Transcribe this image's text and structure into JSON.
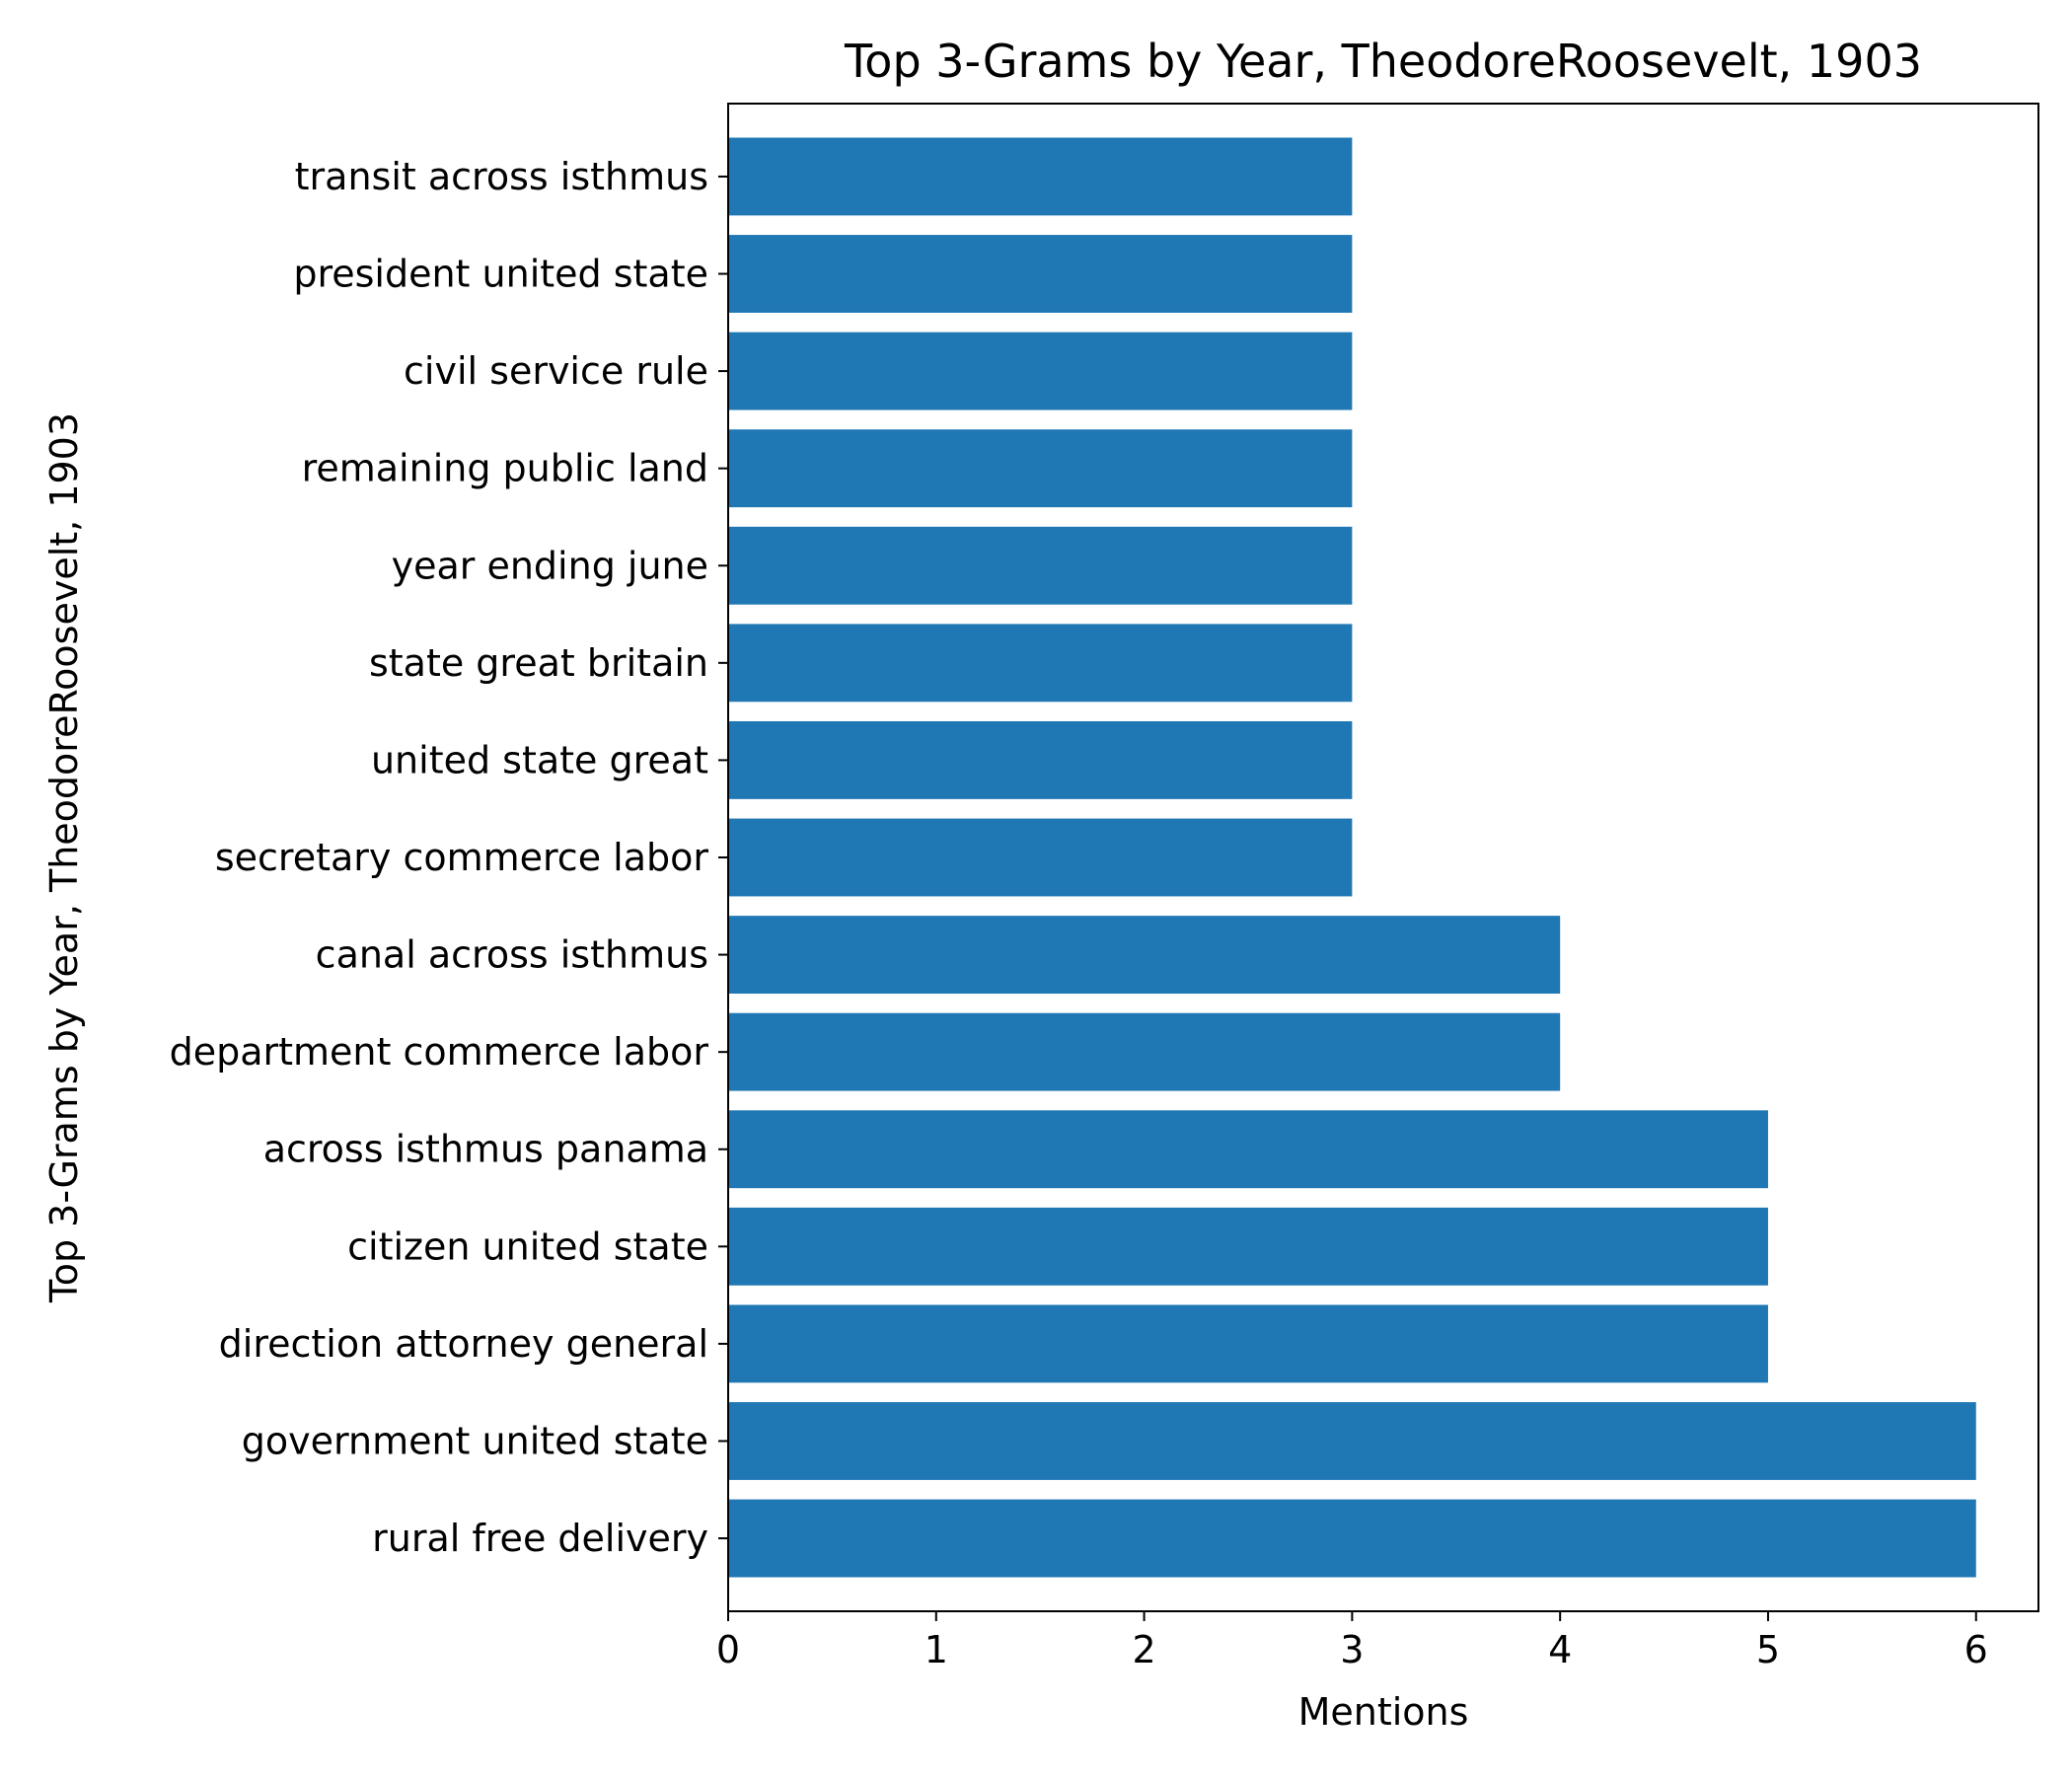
{
  "chart_data": {
    "type": "bar",
    "orientation": "horizontal",
    "title": "Top 3-Grams by Year, TheodoreRoosevelt, 1903",
    "xlabel": "Mentions",
    "ylabel": "Top 3-Grams by Year, TheodoreRoosevelt, 1903",
    "categories": [
      "rural free delivery",
      "government united state",
      "direction attorney general",
      "citizen united state",
      "across isthmus panama",
      "department commerce labor",
      "canal across isthmus",
      "secretary commerce labor",
      "united state great",
      "state great britain",
      "year ending june",
      "remaining public land",
      "civil service rule",
      "president united state",
      "transit across isthmus"
    ],
    "values": [
      6,
      6,
      5,
      5,
      5,
      4,
      4,
      3,
      3,
      3,
      3,
      3,
      3,
      3,
      3
    ],
    "xlim": [
      0,
      6.3
    ],
    "xticks": [
      "0",
      "1",
      "2",
      "3",
      "4",
      "5",
      "6"
    ],
    "grid": false,
    "bar_color": "#1f77b4"
  }
}
